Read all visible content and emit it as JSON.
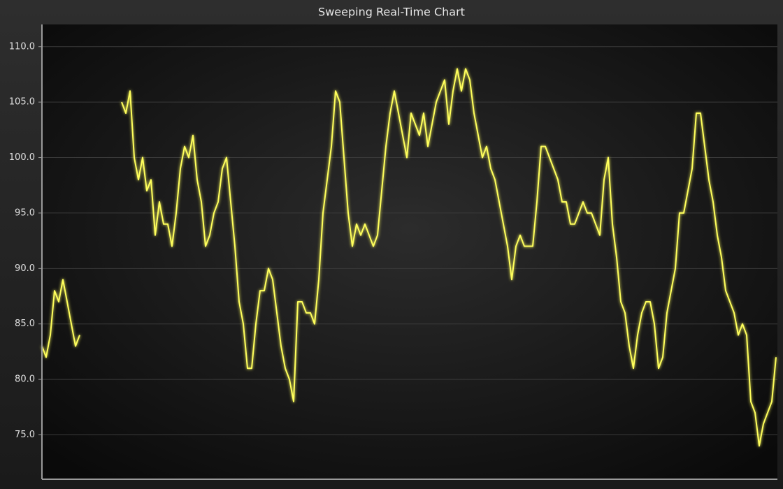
{
  "chart_data": {
    "type": "line",
    "title": "Sweeping Real-Time Chart",
    "ylim": [
      71,
      112
    ],
    "yticks": [
      {
        "value": 75,
        "label": "75.0"
      },
      {
        "value": 80,
        "label": "80.0"
      },
      {
        "value": 85,
        "label": "85.0"
      },
      {
        "value": 90,
        "label": "90.0"
      },
      {
        "value": 95,
        "label": "95.0"
      },
      {
        "value": 100,
        "label": "100.0"
      },
      {
        "value": 105,
        "label": "105.0"
      },
      {
        "value": 110,
        "label": "110.0"
      }
    ],
    "grid": true,
    "color": "#ffff5c",
    "values": [
      83,
      82,
      84,
      88,
      87,
      89,
      87,
      85,
      83,
      84,
      null,
      null,
      null,
      null,
      null,
      null,
      null,
      null,
      null,
      105,
      104,
      106,
      100,
      98,
      100,
      97,
      98,
      93,
      96,
      94,
      94,
      92,
      95,
      99,
      101,
      100,
      102,
      98,
      96,
      92,
      93,
      95,
      96,
      99,
      100,
      96,
      92,
      87,
      85,
      81,
      81,
      85,
      88,
      88,
      90,
      89,
      86,
      83,
      81,
      80,
      78,
      87,
      87,
      86,
      86,
      85,
      89,
      95,
      98,
      101,
      106,
      105,
      100,
      95,
      92,
      94,
      93,
      94,
      93,
      92,
      93,
      97,
      101,
      104,
      106,
      104,
      102,
      100,
      104,
      103,
      102,
      104,
      101,
      103,
      105,
      106,
      107,
      103,
      106,
      108,
      106,
      108,
      107,
      104,
      102,
      100,
      101,
      99,
      98,
      96,
      94,
      92,
      89,
      92,
      93,
      92,
      92,
      92,
      96,
      101,
      101,
      100,
      99,
      98,
      96,
      96,
      94,
      94,
      95,
      96,
      95,
      95,
      94,
      93,
      98,
      100,
      94,
      91,
      87,
      86,
      83,
      81,
      84,
      86,
      87,
      87,
      85,
      81,
      82,
      86,
      88,
      90,
      95,
      95,
      97,
      99,
      104,
      104,
      101,
      98,
      96,
      93,
      91,
      88,
      87,
      86,
      84,
      85,
      84,
      78,
      77,
      74,
      76,
      77,
      78,
      82
    ]
  }
}
